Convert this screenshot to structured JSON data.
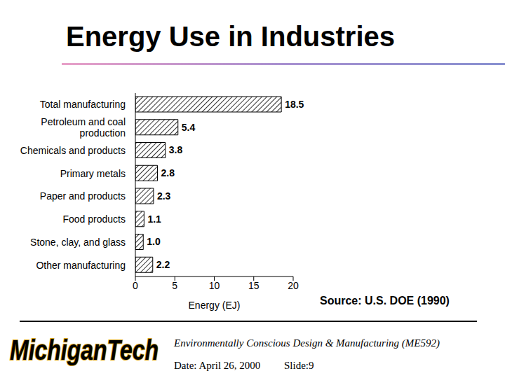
{
  "slide": {
    "title": "Energy Use in Industries",
    "source": "Source: U.S. DOE (1990)",
    "logo": "MichiganTech",
    "course": "Environmentally Conscious Design & Manufacturing (ME592)",
    "date": "Date: April 26, 2000",
    "slide": "Slide:9"
  },
  "chart_data": {
    "type": "bar",
    "orientation": "horizontal",
    "categories": [
      "Total manufacturing",
      "Petroleum and coal production",
      "Chemicals and products",
      "Primary metals",
      "Paper and products",
      "Food products",
      "Stone, clay, and glass",
      "Other manufacturing"
    ],
    "values": [
      18.5,
      5.4,
      3.8,
      2.8,
      2.3,
      1.1,
      1.0,
      2.2
    ],
    "value_labels": [
      "18.5",
      "5.4",
      "3.8",
      "2.8",
      "2.3",
      "1.1",
      "1.0",
      "2.2"
    ],
    "color": "#000000",
    "xlim": [
      0,
      20
    ],
    "xticks": [
      0,
      5,
      10,
      15,
      20
    ],
    "xlabel": "Energy (EJ)",
    "data_labels": true,
    "grid": false
  }
}
